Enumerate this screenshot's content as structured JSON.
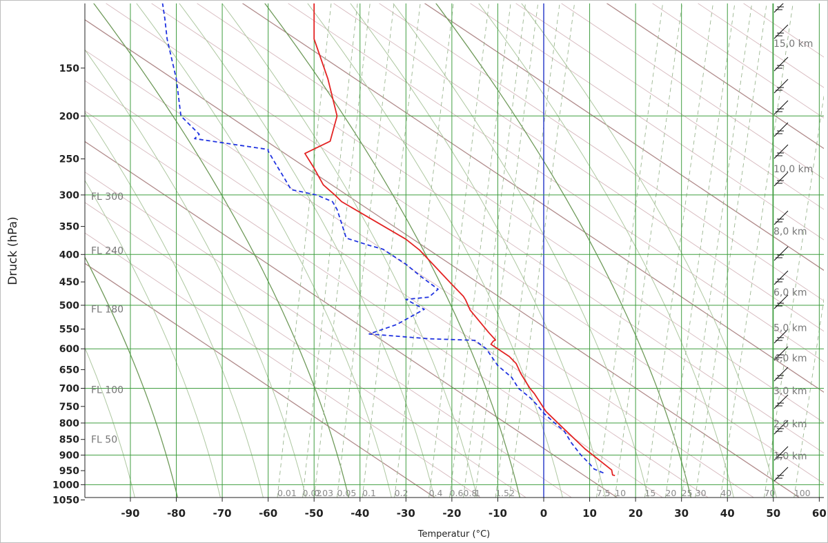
{
  "chart_data": {
    "type": "line",
    "title": "",
    "xlabel": "Temperatur (°C)",
    "ylabel": "Druck (hPa)",
    "xlim": [
      -100,
      60
    ],
    "ylim": [
      1050,
      100
    ],
    "x_ticks": [
      "-90",
      "-80",
      "-70",
      "-60",
      "-50",
      "-40",
      "-30",
      "-20",
      "-10",
      "0",
      "10",
      "20",
      "30",
      "40",
      "50",
      "60"
    ],
    "x_tick_values": [
      -90,
      -80,
      -70,
      -60,
      -50,
      -40,
      -30,
      -20,
      -10,
      0,
      10,
      20,
      30,
      40,
      50,
      60
    ],
    "y_ticks": [
      "150",
      "200",
      "250",
      "300",
      "350",
      "400",
      "450",
      "500",
      "550",
      "600",
      "650",
      "700",
      "750",
      "800",
      "850",
      "900",
      "950",
      "1000",
      "1050"
    ],
    "y_tick_values": [
      150,
      200,
      250,
      300,
      350,
      400,
      450,
      500,
      550,
      600,
      650,
      700,
      750,
      800,
      850,
      900,
      950,
      1000,
      1050
    ],
    "flight_levels": [
      {
        "label": "FL 300",
        "p": 300
      },
      {
        "label": "FL 240",
        "p": 390
      },
      {
        "label": "FL 180",
        "p": 505
      },
      {
        "label": "FL 100",
        "p": 700
      },
      {
        "label": "FL 50",
        "p": 845
      }
    ],
    "height_labels": [
      {
        "label": "15,0 km",
        "p": 128
      },
      {
        "label": "10,0 km",
        "p": 262
      },
      {
        "label": "8,0 km",
        "p": 357
      },
      {
        "label": "6,0 km",
        "p": 470
      },
      {
        "label": "5,0 km",
        "p": 545
      },
      {
        "label": "4,0 km",
        "p": 620
      },
      {
        "label": "3,0 km",
        "p": 705
      },
      {
        "label": "2,0 km",
        "p": 800
      },
      {
        "label": "1,0 km",
        "p": 900
      }
    ],
    "mixing_ratio_labels": [
      {
        "label": "0.01",
        "x": -58
      },
      {
        "label": "0.02",
        "x": -52.5
      },
      {
        "label": "0.03",
        "x": -50
      },
      {
        "label": "0.05",
        "x": -45
      },
      {
        "label": "0.1",
        "x": -39.5
      },
      {
        "label": "0.2",
        "x": -32.5
      },
      {
        "label": "0.4",
        "x": -25
      },
      {
        "label": "0.6",
        "x": -20.5
      },
      {
        "label": "0.8",
        "x": -17.5
      },
      {
        "label": "1",
        "x": -15
      },
      {
        "label": "1.5",
        "x": -10.5
      },
      {
        "label": "2",
        "x": -7.5
      },
      {
        "label": "7.5",
        "x": 11.5
      },
      {
        "label": "10",
        "x": 15.5
      },
      {
        "label": "15",
        "x": 22
      },
      {
        "label": "20",
        "x": 26.5
      },
      {
        "label": "25",
        "x": 30
      },
      {
        "label": "30",
        "x": 33
      },
      {
        "label": "40",
        "x": 38.5
      },
      {
        "label": "70",
        "x": 48
      },
      {
        "label": "100",
        "x": 54.5
      }
    ],
    "series": [
      {
        "color": "#e32222",
        "dash": "solid",
        "points": [
          [
            15.5,
            967
          ],
          [
            15.0,
            965
          ],
          [
            14.8,
            948
          ],
          [
            9.0,
            880
          ],
          [
            4.0,
            812
          ],
          [
            0.5,
            765
          ],
          [
            -2.0,
            715
          ],
          [
            -3.0,
            700
          ],
          [
            -4.0,
            680
          ],
          [
            -5.0,
            660
          ],
          [
            -6.0,
            635
          ],
          [
            -7.5,
            618
          ],
          [
            -11.5,
            588
          ],
          [
            -11.0,
            580
          ],
          [
            -10.5,
            577
          ],
          [
            -12.0,
            558
          ],
          [
            -16.0,
            510
          ],
          [
            -17.0,
            488
          ],
          [
            -17.5,
            480
          ],
          [
            -20.0,
            455
          ],
          [
            -27.0,
            392
          ],
          [
            -30.0,
            372
          ],
          [
            -44.0,
            310
          ],
          [
            -45.5,
            300
          ],
          [
            -48.0,
            285
          ],
          [
            -50.0,
            262
          ],
          [
            -52.0,
            243
          ],
          [
            -46.5,
            228
          ],
          [
            -45.0,
            200
          ],
          [
            -47.0,
            160
          ],
          [
            -50.0,
            125
          ],
          [
            -50.0,
            115
          ],
          [
            -50.0,
            100
          ]
        ]
      },
      {
        "color": "#1f32e0",
        "dash": "dashed",
        "points": [
          [
            13.0,
            958
          ],
          [
            11.0,
            945
          ],
          [
            10.0,
            928
          ],
          [
            8.0,
            898
          ],
          [
            6.0,
            860
          ],
          [
            4.5,
            825
          ],
          [
            2.0,
            795
          ],
          [
            0.0,
            770
          ],
          [
            -1.5,
            745
          ],
          [
            -3.0,
            725
          ],
          [
            -5.5,
            700
          ],
          [
            -7.0,
            670
          ],
          [
            -10.0,
            640
          ],
          [
            -11.5,
            616
          ],
          [
            -12.5,
            600
          ],
          [
            -15.0,
            578
          ],
          [
            -25.0,
            574
          ],
          [
            -38.0,
            562
          ],
          [
            -32.0,
            540
          ],
          [
            -26.0,
            508
          ],
          [
            -30.0,
            487
          ],
          [
            -25.0,
            482
          ],
          [
            -23.0,
            465
          ],
          [
            -27.0,
            438
          ],
          [
            -30.0,
            417
          ],
          [
            -35.0,
            390
          ],
          [
            -38.0,
            383
          ],
          [
            -43.0,
            370
          ],
          [
            -44.0,
            345
          ],
          [
            -45.0,
            322
          ],
          [
            -46.0,
            310
          ],
          [
            -49.5,
            300
          ],
          [
            -55.0,
            292
          ],
          [
            -57.0,
            270
          ],
          [
            -58.5,
            255
          ],
          [
            -60.0,
            240
          ],
          [
            -60.0,
            238
          ],
          [
            -76.0,
            225
          ],
          [
            -75.0,
            220
          ],
          [
            -79.0,
            200
          ],
          [
            -80.0,
            160
          ],
          [
            -82.0,
            125
          ],
          [
            -82.5,
            110
          ],
          [
            -83.0,
            100
          ]
        ]
      }
    ]
  }
}
